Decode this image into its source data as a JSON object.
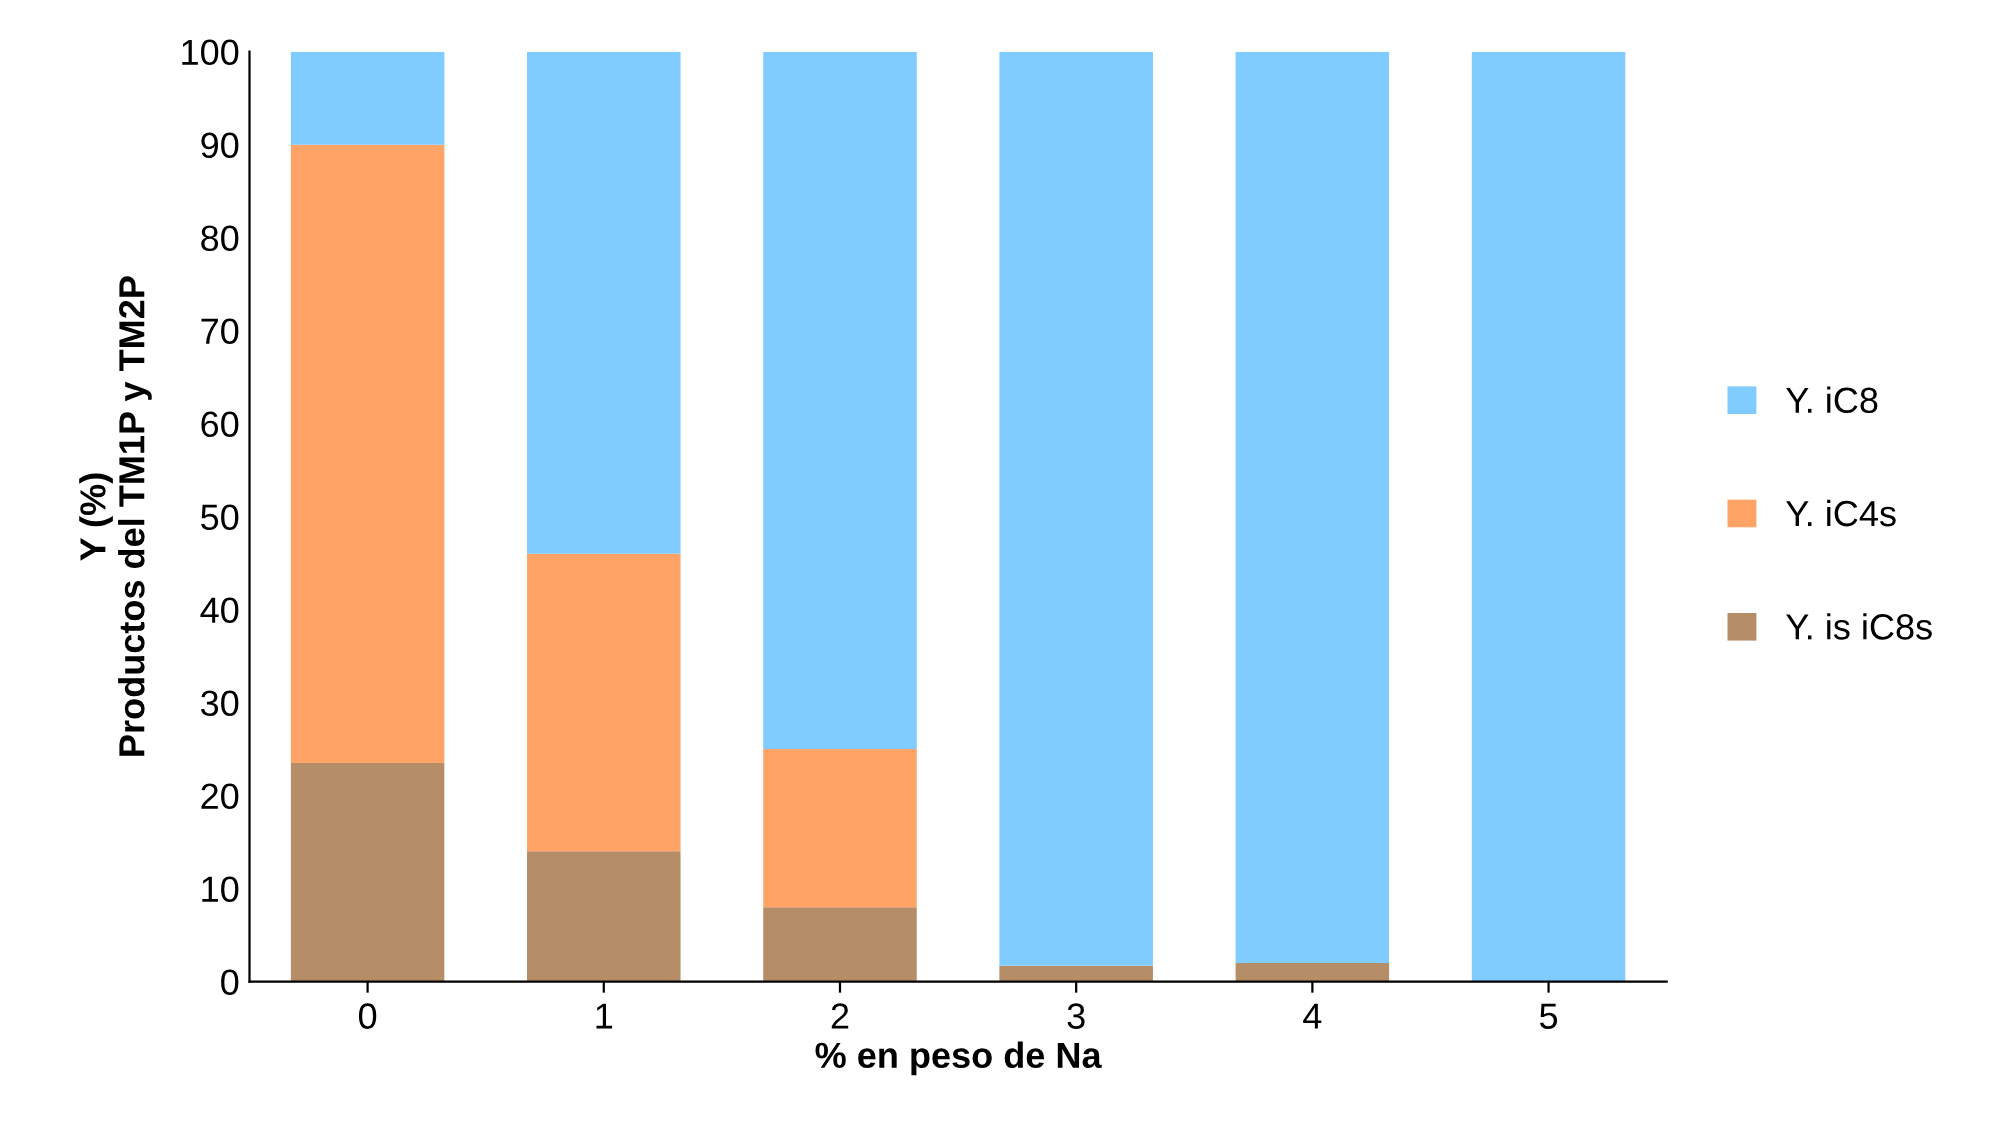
{
  "chart_data": {
    "type": "bar",
    "stacked": true,
    "xlabel": "% en peso de Na",
    "ylabel": "Y (%)\nProductos del TM1P y TM2P",
    "categories": [
      "0",
      "1",
      "2",
      "3",
      "4",
      "5"
    ],
    "series": [
      {
        "name": "Y. is iC8s",
        "color": "#b58e68",
        "values": [
          23.5,
          14,
          8,
          1.7,
          2,
          0
        ]
      },
      {
        "name": "Y. iC4s",
        "color": "#ffa466",
        "values": [
          66.5,
          32,
          17,
          0,
          0,
          0
        ]
      },
      {
        "name": "Y. iC8",
        "color": "#80cbff",
        "values": [
          10,
          54,
          75,
          98.3,
          98,
          100
        ]
      }
    ],
    "ylim": [
      0,
      100
    ],
    "yticks": [
      0,
      10,
      20,
      30,
      40,
      50,
      60,
      70,
      80,
      90,
      100
    ],
    "grid": false,
    "legend": "right"
  }
}
